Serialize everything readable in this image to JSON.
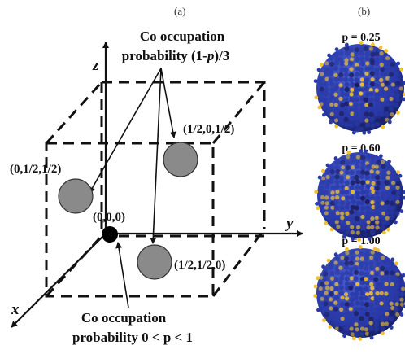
{
  "panel_a": {
    "tag": "(a)",
    "note_top": {
      "line1": "Co occupation",
      "line2_prefix": "probability (1-",
      "line2_var": "p",
      "line2_suffix": ")/3"
    },
    "note_bottom": {
      "line1": "Co occupation",
      "line2": "probability  0 < p < 1"
    },
    "axes": {
      "x": "x",
      "y": "y",
      "z": "z"
    },
    "sites": [
      {
        "label": "(0,0,0)",
        "kind": "origin"
      },
      {
        "label": "(1/2,0,1/2)",
        "kind": "face"
      },
      {
        "label": "(0,1/2,1/2)",
        "kind": "face"
      },
      {
        "label": "(1/2,1/2,0)",
        "kind": "face"
      }
    ],
    "colors": {
      "origin_atom": "#000000",
      "face_atom": "#8a8a8a",
      "line": "#111111"
    }
  },
  "panel_b": {
    "tag": "(b)",
    "clusters": [
      {
        "p_label": "p = 0.25"
      },
      {
        "p_label": "p = 0.60"
      },
      {
        "p_label": "p = 1.00"
      }
    ],
    "colors": {
      "blue_atom": "#2a3aa8",
      "yellow_atom": "#f2c12e",
      "dark_atom": "#1a1d5e"
    }
  }
}
